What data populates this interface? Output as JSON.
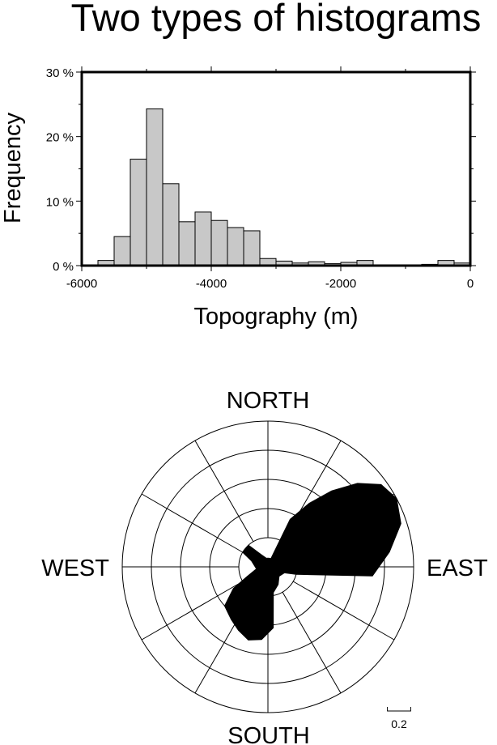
{
  "title": "Two types of histograms",
  "chart_data": [
    {
      "type": "bar",
      "ylabel": "Frequency",
      "xlabel": "Topography (m)",
      "xlim": [
        -6000,
        0
      ],
      "ylim": [
        0,
        30
      ],
      "bin_width": 250,
      "x_ticks": [
        -6000,
        -4000,
        -2000,
        0
      ],
      "x_tick_labels": [
        "-6000",
        "-4000",
        "-2000",
        "0"
      ],
      "y_ticks": [
        0,
        10,
        20,
        30
      ],
      "y_tick_labels": [
        "0 %",
        "10 %",
        "20 %",
        "30 %"
      ],
      "bar_color": "#c8c8c8",
      "bins": [
        {
          "x0": -5750,
          "value": 0.8
        },
        {
          "x0": -5500,
          "value": 4.5
        },
        {
          "x0": -5250,
          "value": 16.5
        },
        {
          "x0": -5000,
          "value": 24.3
        },
        {
          "x0": -4750,
          "value": 12.7
        },
        {
          "x0": -4500,
          "value": 6.8
        },
        {
          "x0": -4250,
          "value": 8.3
        },
        {
          "x0": -4000,
          "value": 7.0
        },
        {
          "x0": -3750,
          "value": 5.9
        },
        {
          "x0": -3500,
          "value": 5.4
        },
        {
          "x0": -3250,
          "value": 1.1
        },
        {
          "x0": -3000,
          "value": 0.7
        },
        {
          "x0": -2750,
          "value": 0.4
        },
        {
          "x0": -2500,
          "value": 0.6
        },
        {
          "x0": -2250,
          "value": 0.3
        },
        {
          "x0": -2000,
          "value": 0.5
        },
        {
          "x0": -1750,
          "value": 0.8
        },
        {
          "x0": -750,
          "value": 0.2
        },
        {
          "x0": -500,
          "value": 0.8
        },
        {
          "x0": -250,
          "value": 0.4
        }
      ]
    },
    {
      "type": "rose",
      "direction_labels": {
        "north": "NORTH",
        "south": "SOUTH",
        "east": "EAST",
        "west": "WEST"
      },
      "rmax": 0.5,
      "ring_values": [
        0.1,
        0.2,
        0.3,
        0.4,
        0.5
      ],
      "spoke_step_degrees": 30,
      "scale_bar_label": "0.2",
      "fill_color": "#000000",
      "points": [
        {
          "azimuth": 0,
          "r": 0.03
        },
        {
          "azimuth": 10,
          "r": 0.03
        },
        {
          "azimuth": 20,
          "r": 0.03
        },
        {
          "azimuth": 25,
          "r": 0.18
        },
        {
          "azimuth": 33,
          "r": 0.26
        },
        {
          "azimuth": 40,
          "r": 0.34
        },
        {
          "azimuth": 47,
          "r": 0.42
        },
        {
          "azimuth": 54,
          "r": 0.48
        },
        {
          "azimuth": 62,
          "r": 0.5
        },
        {
          "azimuth": 72,
          "r": 0.48
        },
        {
          "azimuth": 83,
          "r": 0.42
        },
        {
          "azimuth": 95,
          "r": 0.36
        },
        {
          "azimuth": 105,
          "r": 0.1
        },
        {
          "azimuth": 110,
          "r": 0.06
        },
        {
          "azimuth": 130,
          "r": 0.05
        },
        {
          "azimuth": 150,
          "r": 0.07
        },
        {
          "azimuth": 168,
          "r": 0.09
        },
        {
          "azimuth": 175,
          "r": 0.21
        },
        {
          "azimuth": 185,
          "r": 0.25
        },
        {
          "azimuth": 195,
          "r": 0.26
        },
        {
          "azimuth": 205,
          "r": 0.24
        },
        {
          "azimuth": 215,
          "r": 0.22
        },
        {
          "azimuth": 228,
          "r": 0.2
        },
        {
          "azimuth": 238,
          "r": 0.14
        },
        {
          "azimuth": 245,
          "r": 0.08
        },
        {
          "azimuth": 260,
          "r": 0.04
        },
        {
          "azimuth": 290,
          "r": 0.06
        },
        {
          "azimuth": 300,
          "r": 0.1
        },
        {
          "azimuth": 305,
          "r": 0.1
        },
        {
          "azimuth": 318,
          "r": 0.1
        },
        {
          "azimuth": 330,
          "r": 0.05
        },
        {
          "azimuth": 350,
          "r": 0.03
        }
      ]
    }
  ]
}
